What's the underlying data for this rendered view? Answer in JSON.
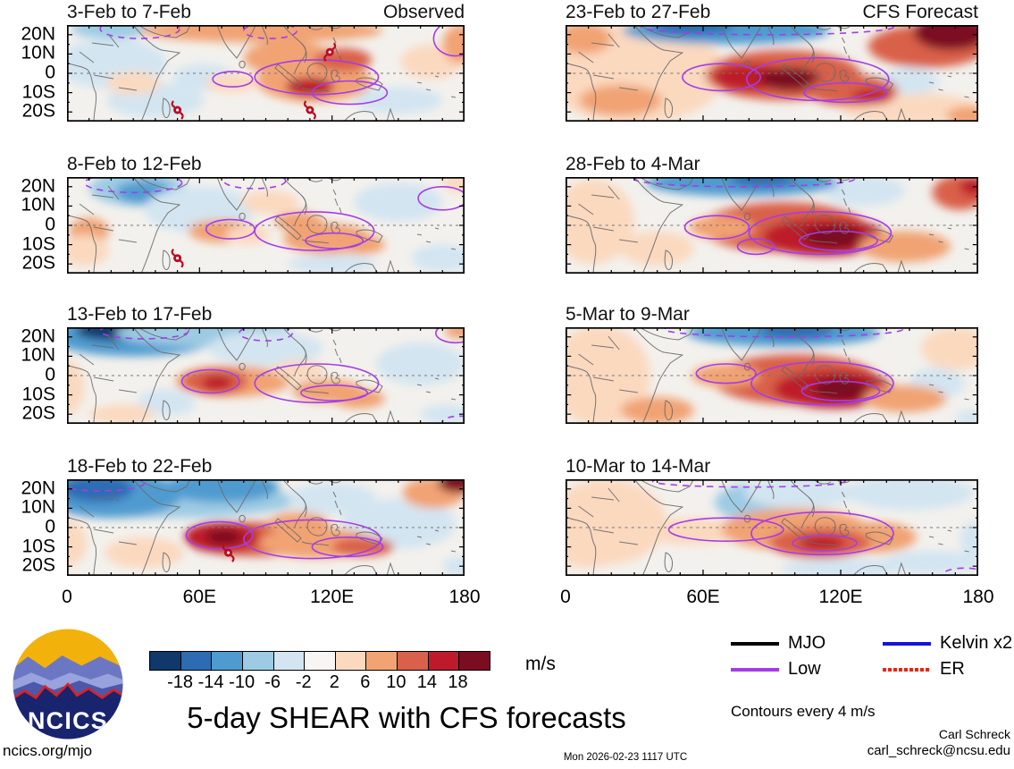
{
  "chart_data": {
    "type": "filled_contour_map_grid",
    "title": "5-day SHEAR with CFS forecasts",
    "grid": {
      "rows": 4,
      "cols": 2
    },
    "axes": {
      "y_labels": [
        "20N",
        "10N",
        "0",
        "10S",
        "20S"
      ],
      "x_labels": [
        "0",
        "60E",
        "120E",
        "180"
      ],
      "lon_range": [
        0,
        180
      ],
      "lat_range": [
        -25,
        25
      ]
    },
    "colorbar": {
      "units": "m/s",
      "tick_labels": [
        "-18",
        "-14",
        "-10",
        "-6",
        "-2",
        "2",
        "6",
        "10",
        "14",
        "18"
      ],
      "tick_values": [
        -18,
        -14,
        -10,
        -6,
        -2,
        2,
        6,
        10,
        14,
        18
      ],
      "colors": [
        "#10386b",
        "#2d6cb3",
        "#4f9bd0",
        "#9dcbe4",
        "#d3e5f1",
        "#f7f6f4",
        "#fbd9bf",
        "#f1a373",
        "#d9604a",
        "#bd1b2b",
        "#7c0d21"
      ]
    },
    "legend": {
      "items": [
        {
          "label": "MJO",
          "color": "#000000",
          "style": "solid"
        },
        {
          "label": "Low",
          "color": "#a43de8",
          "style": "solid"
        },
        {
          "label": "Kelvin x2",
          "color": "#1414e0",
          "style": "solid"
        },
        {
          "label": "ER",
          "color": "#ee2211",
          "style": "dotted"
        }
      ],
      "note": "Contours every 4 m/s",
      "contour_color": "#a43de8"
    },
    "panels": [
      {
        "title": "3-Feb to 7-Feb",
        "corner": "Observed",
        "col": 0,
        "row": 0,
        "blobs": [
          [
            20,
            5,
            25,
            13,
            -3
          ],
          [
            40,
            -14,
            22,
            9,
            -3
          ],
          [
            150,
            -14,
            20,
            7,
            -3
          ],
          [
            62,
            -2,
            14,
            7,
            -3
          ],
          [
            20,
            23,
            18,
            5,
            -7
          ],
          [
            88,
            22,
            55,
            6,
            8
          ],
          [
            100,
            8,
            20,
            9,
            7
          ],
          [
            165,
            6,
            14,
            9,
            4
          ],
          [
            75,
            -5,
            12,
            5,
            4
          ],
          [
            30,
            -5,
            12,
            6,
            4
          ],
          [
            178,
            15,
            8,
            10,
            8
          ],
          [
            112,
            -4,
            26,
            11,
            8
          ],
          [
            125,
            7,
            13,
            6,
            11
          ],
          [
            110,
            -7,
            11,
            5,
            15
          ]
        ],
        "contours": [
          [
            75,
            -3,
            9,
            4,
            0
          ],
          [
            113,
            -2,
            28,
            9,
            0
          ],
          [
            128,
            -10,
            17,
            6,
            0
          ],
          [
            176,
            18,
            10,
            9,
            0
          ],
          [
            33,
            23,
            18,
            5,
            1
          ],
          [
            92,
            22,
            12,
            4,
            1
          ]
        ],
        "cyclones": [
          [
            119,
            11,
            1
          ],
          [
            50,
            -19,
            0
          ],
          [
            110,
            -19,
            0
          ]
        ]
      },
      {
        "title": "23-Feb to 27-Feb",
        "corner": "CFS Forecast",
        "col": 1,
        "row": 0,
        "blobs": [
          [
            30,
            0,
            40,
            26,
            3
          ],
          [
            150,
            -18,
            30,
            8,
            4
          ],
          [
            8,
            18,
            12,
            8,
            7
          ],
          [
            24,
            -14,
            18,
            8,
            7
          ],
          [
            150,
            -4,
            13,
            7,
            -3
          ],
          [
            70,
            22,
            45,
            7,
            -11
          ],
          [
            55,
            24,
            18,
            4,
            -15
          ],
          [
            158,
            14,
            26,
            11,
            11
          ],
          [
            168,
            21,
            16,
            9,
            19
          ],
          [
            95,
            -1,
            34,
            13,
            11
          ],
          [
            80,
            -2,
            16,
            7,
            15
          ],
          [
            98,
            -3,
            13,
            6,
            19
          ],
          [
            125,
            -9,
            20,
            8,
            11
          ],
          [
            134,
            -12,
            9,
            4,
            15
          ],
          [
            176,
            -22,
            10,
            5,
            7
          ]
        ],
        "contours": [
          [
            68,
            -2,
            17,
            7,
            0
          ],
          [
            110,
            -3,
            31,
            11,
            0
          ],
          [
            122,
            -10,
            18,
            5,
            0
          ],
          [
            88,
            24,
            55,
            4,
            1
          ]
        ],
        "cyclones": []
      },
      {
        "title": "8-Feb to 12-Feb",
        "corner": "",
        "col": 0,
        "row": 1,
        "blobs": [
          [
            32,
            19,
            22,
            9,
            -7
          ],
          [
            35,
            17,
            13,
            6,
            -11
          ],
          [
            60,
            8,
            25,
            12,
            -3
          ],
          [
            150,
            12,
            20,
            10,
            -3
          ],
          [
            170,
            -17,
            14,
            7,
            -3
          ],
          [
            120,
            -20,
            20,
            5,
            -3
          ],
          [
            10,
            -3,
            9,
            7,
            7
          ],
          [
            8,
            -13,
            11,
            8,
            4
          ],
          [
            70,
            -3,
            15,
            6,
            7
          ],
          [
            82,
            -5,
            10,
            5,
            4
          ],
          [
            92,
            12,
            13,
            6,
            4
          ],
          [
            105,
            2,
            11,
            5,
            7
          ],
          [
            118,
            -7,
            20,
            8,
            7
          ],
          [
            133,
            -10,
            11,
            5,
            8
          ],
          [
            178,
            22,
            8,
            5,
            4
          ]
        ],
        "contours": [
          [
            74,
            -2,
            11,
            5,
            0
          ],
          [
            112,
            -3,
            27,
            10,
            0
          ],
          [
            121,
            -8,
            13,
            4,
            0
          ],
          [
            170,
            14,
            11,
            6,
            0
          ],
          [
            30,
            22,
            22,
            5,
            1
          ],
          [
            85,
            23,
            14,
            4,
            1
          ]
        ],
        "cyclones": [
          [
            50,
            -17,
            0
          ]
        ]
      },
      {
        "title": "28-Feb to 4-Mar",
        "corner": "",
        "col": 1,
        "row": 1,
        "blobs": [
          [
            12,
            2,
            18,
            22,
            4
          ],
          [
            40,
            -12,
            16,
            9,
            4
          ],
          [
            130,
            18,
            18,
            8,
            -3
          ],
          [
            77,
            22,
            42,
            7,
            -11
          ],
          [
            86,
            24,
            14,
            4,
            -15
          ],
          [
            95,
            -1,
            36,
            13,
            11
          ],
          [
            68,
            -1,
            14,
            6,
            7
          ],
          [
            113,
            -6,
            27,
            10,
            15
          ],
          [
            117,
            -6,
            13,
            6,
            19
          ],
          [
            148,
            -11,
            20,
            8,
            7
          ],
          [
            172,
            17,
            12,
            9,
            11
          ],
          [
            178,
            20,
            6,
            5,
            15
          ]
        ],
        "contours": [
          [
            66,
            -1,
            14,
            6,
            0
          ],
          [
            111,
            -4,
            31,
            11,
            0
          ],
          [
            83,
            -11,
            8,
            4,
            0
          ],
          [
            119,
            -8,
            17,
            5,
            0
          ],
          [
            78,
            24,
            48,
            4,
            1
          ]
        ],
        "cyclones": []
      },
      {
        "title": "13-Feb to 17-Feb",
        "corner": "",
        "col": 0,
        "row": 2,
        "blobs": [
          [
            30,
            20,
            38,
            10,
            -11
          ],
          [
            22,
            23,
            18,
            5,
            -19
          ],
          [
            62,
            22,
            40,
            7,
            -7
          ],
          [
            90,
            14,
            26,
            9,
            -3
          ],
          [
            160,
            6,
            20,
            11,
            -3
          ],
          [
            45,
            -14,
            13,
            7,
            -3
          ],
          [
            172,
            -20,
            12,
            5,
            -3
          ],
          [
            0,
            -6,
            8,
            14,
            4
          ],
          [
            25,
            -20,
            15,
            5,
            4
          ],
          [
            75,
            -3,
            26,
            8,
            7
          ],
          [
            67,
            -3,
            15,
            7,
            11
          ],
          [
            68,
            -4,
            7,
            4,
            15
          ],
          [
            105,
            3,
            12,
            5,
            4
          ],
          [
            118,
            -8,
            16,
            6,
            7
          ],
          [
            132,
            -12,
            12,
            5,
            8
          ],
          [
            178,
            23,
            7,
            4,
            8
          ]
        ],
        "contours": [
          [
            65,
            -3,
            13,
            6,
            0
          ],
          [
            113,
            -4,
            28,
            10,
            0
          ],
          [
            121,
            -9,
            15,
            4,
            0
          ],
          [
            176,
            22,
            9,
            5,
            0
          ],
          [
            35,
            23,
            20,
            4,
            1
          ],
          [
            90,
            22,
            12,
            4,
            1
          ],
          [
            178,
            -24,
            8,
            3,
            1
          ]
        ],
        "cyclones": []
      },
      {
        "title": "5-Mar to 9-Mar",
        "corner": "",
        "col": 1,
        "row": 2,
        "blobs": [
          [
            15,
            0,
            22,
            26,
            4
          ],
          [
            40,
            -18,
            16,
            7,
            7
          ],
          [
            162,
            -4,
            12,
            8,
            -3
          ],
          [
            178,
            -22,
            8,
            4,
            -3
          ],
          [
            170,
            14,
            15,
            11,
            4
          ],
          [
            95,
            22,
            42,
            7,
            -11
          ],
          [
            100,
            23,
            16,
            4,
            -15
          ],
          [
            100,
            -2,
            36,
            13,
            11
          ],
          [
            70,
            0,
            15,
            6,
            7
          ],
          [
            117,
            -7,
            26,
            10,
            15
          ],
          [
            120,
            -7,
            12,
            6,
            19
          ],
          [
            148,
            -12,
            18,
            7,
            7
          ]
        ],
        "contours": [
          [
            70,
            1,
            13,
            5,
            0
          ],
          [
            112,
            -4,
            31,
            11,
            0
          ],
          [
            120,
            -8,
            17,
            5,
            0
          ],
          [
            95,
            24,
            52,
            4,
            1
          ]
        ],
        "cyclones": []
      },
      {
        "title": "18-Feb to 22-Feb",
        "corner": "",
        "col": 0,
        "row": 3,
        "blobs": [
          [
            45,
            14,
            60,
            9,
            -7
          ],
          [
            20,
            17,
            32,
            12,
            -11
          ],
          [
            14,
            20,
            16,
            7,
            -15
          ],
          [
            70,
            21,
            26,
            8,
            -11
          ],
          [
            150,
            2,
            26,
            13,
            -3
          ],
          [
            120,
            15,
            20,
            8,
            -3
          ],
          [
            178,
            -20,
            8,
            5,
            -3
          ],
          [
            0,
            -8,
            9,
            12,
            4
          ],
          [
            35,
            -13,
            18,
            8,
            4
          ],
          [
            85,
            -6,
            30,
            9,
            11
          ],
          [
            70,
            -5,
            17,
            8,
            15
          ],
          [
            71,
            -5,
            8,
            4,
            19
          ],
          [
            113,
            -8,
            26,
            8,
            8
          ],
          [
            134,
            -10,
            14,
            5,
            11
          ],
          [
            105,
            2,
            14,
            6,
            7
          ],
          [
            166,
            18,
            14,
            8,
            8
          ],
          [
            177,
            23,
            9,
            5,
            19
          ]
        ],
        "contours": [
          [
            69,
            -4,
            15,
            7,
            0
          ],
          [
            111,
            -6,
            31,
            10,
            0
          ],
          [
            127,
            -10,
            16,
            5,
            0
          ],
          [
            15,
            23,
            20,
            4,
            1
          ]
        ],
        "cyclones": [
          [
            73,
            -13,
            0
          ]
        ]
      },
      {
        "title": "10-Mar to 14-Mar",
        "corner": "",
        "col": 1,
        "row": 3,
        "blobs": [
          [
            18,
            3,
            26,
            22,
            3
          ],
          [
            10,
            -12,
            14,
            9,
            4
          ],
          [
            55,
            -2,
            22,
            7,
            4
          ],
          [
            83,
            13,
            18,
            10,
            -7
          ],
          [
            102,
            18,
            24,
            8,
            -3
          ],
          [
            150,
            18,
            28,
            9,
            -3
          ],
          [
            100,
            -1,
            32,
            11,
            7
          ],
          [
            135,
            -5,
            18,
            8,
            7
          ],
          [
            111,
            -8,
            22,
            8,
            11
          ],
          [
            112,
            -8,
            10,
            4,
            15
          ],
          [
            160,
            -18,
            22,
            6,
            -3
          ],
          [
            120,
            -21,
            26,
            5,
            -3
          ],
          [
            178,
            -6,
            6,
            9,
            -3
          ]
        ],
        "contours": [
          [
            70,
            -1,
            25,
            6,
            0
          ],
          [
            112,
            -3,
            31,
            11,
            0
          ],
          [
            113,
            -8,
            14,
            4,
            0
          ],
          [
            80,
            24,
            42,
            3,
            1
          ],
          [
            174,
            -24,
            9,
            3,
            1
          ]
        ],
        "cyclones": []
      }
    ]
  },
  "logo": {
    "text": "NCICS"
  },
  "footer": {
    "site": "ncics.org/mjo",
    "timestamp": "Mon 2026-02-23 1117 UTC",
    "credit": "Carl Schreck",
    "email": "carl_schreck@ncsu.edu"
  }
}
